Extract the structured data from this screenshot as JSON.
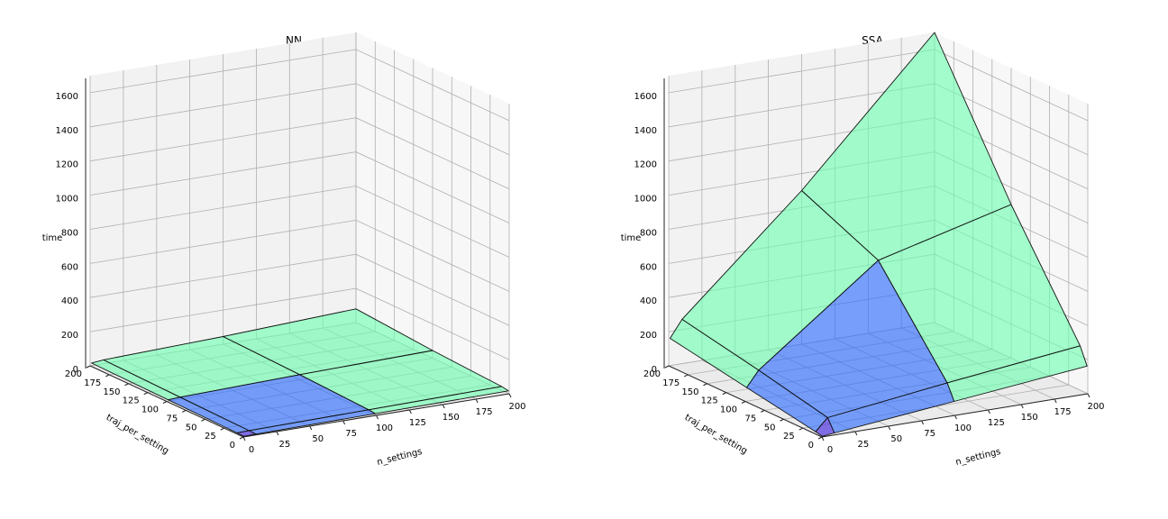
{
  "chart_data": [
    {
      "type": "surface3d",
      "title": "NN",
      "xlabel": "n_settings",
      "ylabel": "traj_per_setting",
      "zlabel": "time",
      "xlim": [
        0,
        200
      ],
      "ylim": [
        0,
        200
      ],
      "zlim": [
        0,
        1700
      ],
      "x_ticks": [
        "0",
        "25",
        "50",
        "75",
        "100",
        "125",
        "150",
        "175",
        "200"
      ],
      "y_ticks": [
        "0",
        "25",
        "50",
        "75",
        "100",
        "125",
        "150",
        "175",
        "200"
      ],
      "z_ticks": [
        "0",
        "200",
        "400",
        "600",
        "800",
        "1000",
        "1200",
        "1400",
        "1600"
      ],
      "grid": true,
      "x": [
        1,
        10,
        100,
        200
      ],
      "y": [
        1,
        10,
        100,
        200
      ],
      "z": [
        [
          1,
          2,
          8,
          15
        ],
        [
          2,
          4,
          12,
          22
        ],
        [
          8,
          12,
          30,
          45
        ],
        [
          15,
          22,
          45,
          80
        ]
      ],
      "colormap": [
        "#3b1fe0",
        "#2a6bff",
        "#6dffb0",
        "#8b1a1a"
      ]
    },
    {
      "type": "surface3d",
      "title": "SSA",
      "xlabel": "n_settings",
      "ylabel": "traj_per_setting",
      "zlabel": "time",
      "xlim": [
        0,
        200
      ],
      "ylim": [
        0,
        200
      ],
      "zlim": [
        0,
        1700
      ],
      "x_ticks": [
        "0",
        "25",
        "50",
        "75",
        "100",
        "125",
        "150",
        "175",
        "200"
      ],
      "y_ticks": [
        "0",
        "25",
        "50",
        "75",
        "100",
        "125",
        "150",
        "175",
        "200"
      ],
      "z_ticks": [
        "0",
        "200",
        "400",
        "600",
        "800",
        "1000",
        "1200",
        "1400",
        "1600"
      ],
      "grid": true,
      "x": [
        1,
        10,
        100,
        200
      ],
      "y": [
        1,
        10,
        100,
        200
      ],
      "z": [
        [
          1,
          9,
          80,
          160
        ],
        [
          9,
          80,
          170,
          260
        ],
        [
          80,
          170,
          700,
          900
        ],
        [
          160,
          260,
          900,
          1700
        ]
      ],
      "colormap": [
        "#3b1fe0",
        "#2a6bff",
        "#6dffb0",
        "#8b1a1a"
      ]
    }
  ]
}
